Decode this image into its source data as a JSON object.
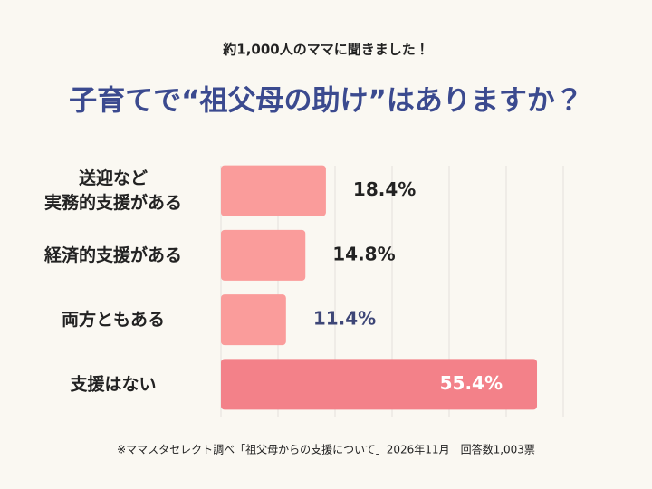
{
  "chart_data": {
    "type": "barh",
    "subtitle": "約1,000人のママに聞きました！",
    "title": "子育てで“祖父母の助け”はありますか？",
    "categories": [
      "送迎など\n実務的支援がある",
      "経済的支援がある",
      "両方ともある",
      "支援はない"
    ],
    "values": [
      18.4,
      14.8,
      11.4,
      55.4
    ],
    "value_labels": [
      "18.4%",
      "14.8%",
      "11.4%",
      "55.4%"
    ],
    "colors": [
      "#fa9c9b",
      "#fa9c9b",
      "#fa9c9b",
      "#f38189"
    ],
    "value_label_colors": [
      "#222222",
      "#222222",
      "#3d4677",
      "#ffffff"
    ],
    "xlim": [
      0,
      60
    ],
    "xticks": [
      0,
      10,
      20,
      30,
      40,
      50,
      60
    ],
    "grid": true,
    "note": "※ママスタセレクト調べ「祖父母からの支援について」2026年11月　回答数1,003票"
  }
}
